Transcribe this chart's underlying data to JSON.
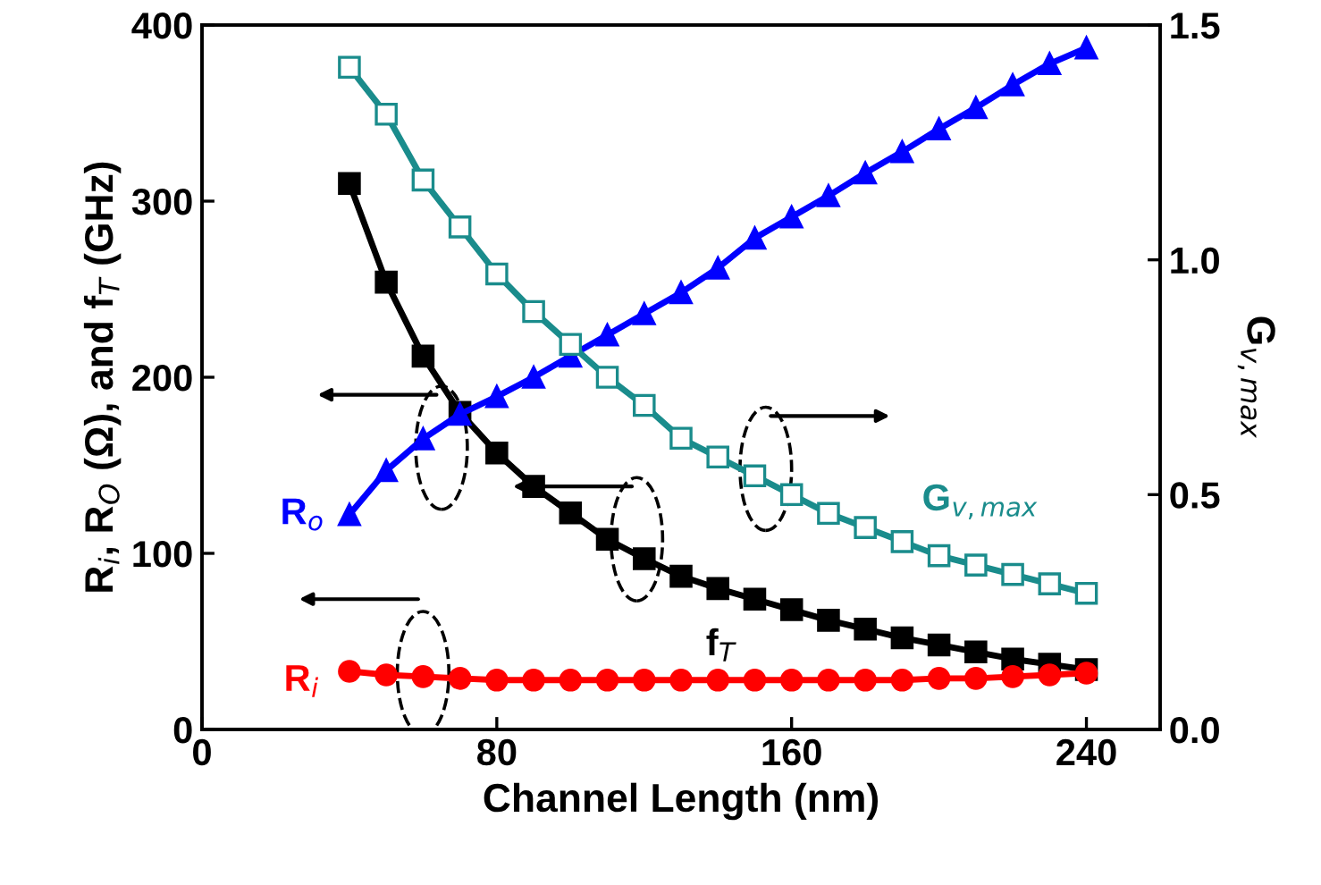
{
  "chart_data": {
    "type": "line",
    "xlabel": "Channel Length (nm)",
    "ylabel": "R$_{i}$, R$_{O}$ (Ω), and f$_{T}$ (GHz)",
    "y2label": "G$_{v,max}$",
    "x": [
      40,
      50,
      60,
      70,
      80,
      90,
      100,
      110,
      120,
      130,
      140,
      150,
      160,
      170,
      180,
      190,
      200,
      210,
      220,
      230,
      240
    ],
    "xlim": [
      0,
      260
    ],
    "xticks": [
      0,
      80,
      160,
      240
    ],
    "ylim": [
      0,
      400
    ],
    "yticks": [
      0,
      100,
      200,
      300,
      400
    ],
    "y2lim": [
      0,
      1.5
    ],
    "y2ticks": [
      {
        "value": 0,
        "label": "0.0"
      },
      0.5,
      {
        "value": 1,
        "label": "1.0"
      },
      1.5
    ],
    "grid": false,
    "legend": false,
    "series": [
      {
        "name": "f$_{T}$",
        "color": "#000000",
        "marker": "square",
        "values": [
          310,
          254,
          212,
          180,
          157,
          138,
          123,
          108,
          97,
          87,
          80,
          74,
          68,
          62,
          57,
          52,
          48,
          44,
          40,
          37,
          34
        ]
      },
      {
        "name": "R$_{o}$",
        "color": "#0000ff",
        "marker": "triangle",
        "values": [
          122,
          147,
          165,
          179,
          189,
          200,
          212,
          224,
          236,
          248,
          262,
          279,
          291,
          303,
          316,
          328,
          341,
          353,
          366,
          378,
          387
        ]
      },
      {
        "name": "R$_{i}$",
        "color": "#ff0000",
        "marker": "circle",
        "values": [
          33,
          31,
          30,
          29,
          28,
          28,
          28,
          28,
          28,
          28,
          28,
          28,
          28,
          28,
          28,
          28,
          29,
          29,
          30,
          31,
          32
        ]
      },
      {
        "name": "G$_{v,max}$",
        "color": "#1a8c8c",
        "marker": "square",
        "axis": "y2",
        "values": [
          1.41,
          1.31,
          1.17,
          1.07,
          0.97,
          0.89,
          0.82,
          0.75,
          0.69,
          0.62,
          0.58,
          0.54,
          0.5,
          0.46,
          0.43,
          0.4,
          0.37,
          0.35,
          0.33,
          0.31,
          0.29
        ]
      }
    ]
  }
}
